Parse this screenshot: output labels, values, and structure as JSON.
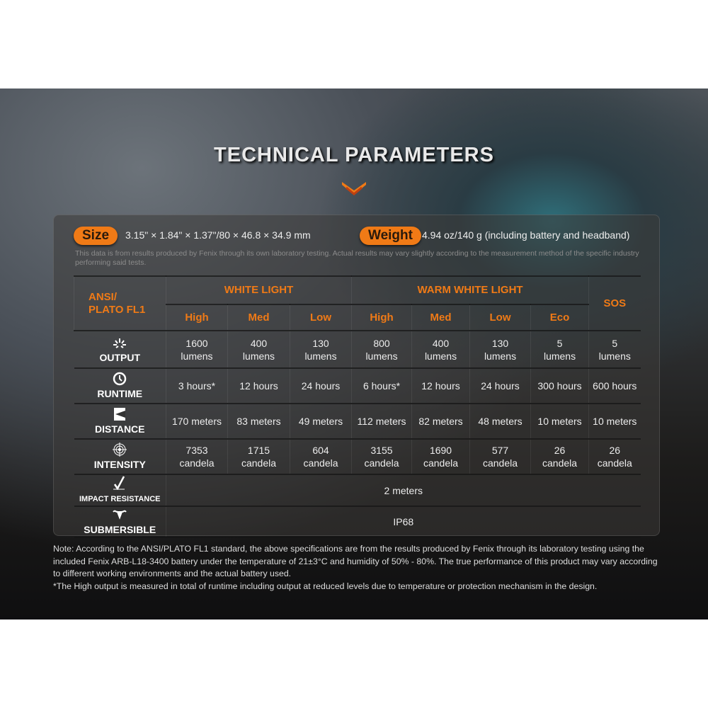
{
  "title": "TECHNICAL PARAMETERS",
  "size": {
    "label": "Size",
    "value": "3.15\" × 1.84\" × 1.37\"/80 × 46.8 × 34.9 mm"
  },
  "weight": {
    "label": "Weight",
    "value": "4.94 oz/140 g (including battery and headband)"
  },
  "disclaimer": "This data is from results produced by Fenix through its own laboratory testing. Actual results may vary slightly according to the measurement method of the specific industry performing said tests.",
  "table": {
    "corner": [
      "ANSI/",
      "PLATO FL1"
    ],
    "groups": [
      "WHITE LIGHT",
      "WARM WHITE LIGHT",
      "SOS"
    ],
    "modes": [
      "High",
      "Med",
      "Low",
      "High",
      "Med",
      "Low",
      "Eco"
    ],
    "rows": [
      {
        "label": "OUTPUT",
        "icon": "sunburst-icon",
        "cells": [
          [
            "1600",
            "lumens"
          ],
          [
            "400",
            "lumens"
          ],
          [
            "130",
            "lumens"
          ],
          [
            "800",
            "lumens"
          ],
          [
            "400",
            "lumens"
          ],
          [
            "130",
            "lumens"
          ],
          [
            "5",
            "lumens"
          ],
          [
            "5",
            "lumens"
          ]
        ]
      },
      {
        "label": "RUNTIME",
        "icon": "clock-icon",
        "cells": [
          "3 hours*",
          "12 hours",
          "24 hours",
          "6 hours*",
          "12 hours",
          "24 hours",
          "300 hours",
          "600 hours"
        ]
      },
      {
        "label": "DISTANCE",
        "icon": "beam-distance-icon",
        "cells": [
          "170 meters",
          "83 meters",
          "49 meters",
          "112 meters",
          "82 meters",
          "48 meters",
          "10 meters",
          "10 meters"
        ]
      },
      {
        "label": "INTENSITY",
        "icon": "target-icon",
        "cells": [
          [
            "7353",
            "candela"
          ],
          [
            "1715",
            "candela"
          ],
          [
            "604",
            "candela"
          ],
          [
            "3155",
            "candela"
          ],
          [
            "1690",
            "candela"
          ],
          [
            "577",
            "candela"
          ],
          [
            "26",
            "candela"
          ],
          [
            "26",
            "candela"
          ]
        ]
      },
      {
        "label": "IMPACT RESISTANCE",
        "icon": "impact-check-icon",
        "value": "2 meters"
      },
      {
        "label": "SUBMERSIBLE",
        "icon": "water-icon",
        "value": "IP68"
      }
    ]
  },
  "note": [
    "Note: According to the ANSI/PLATO FL1 standard, the above specifications are from the results produced by Fenix through its laboratory testing using the included Fenix ARB-L18-3400 battery under the temperature of 21±3°C and humidity of 50% - 80%. The true performance of this product may vary according to different working environments and the actual battery used.",
    "*The High output is measured in total of runtime including output at reduced levels due to temperature or protection mechanism in the design."
  ],
  "colors": {
    "accent": "#f07a16"
  }
}
